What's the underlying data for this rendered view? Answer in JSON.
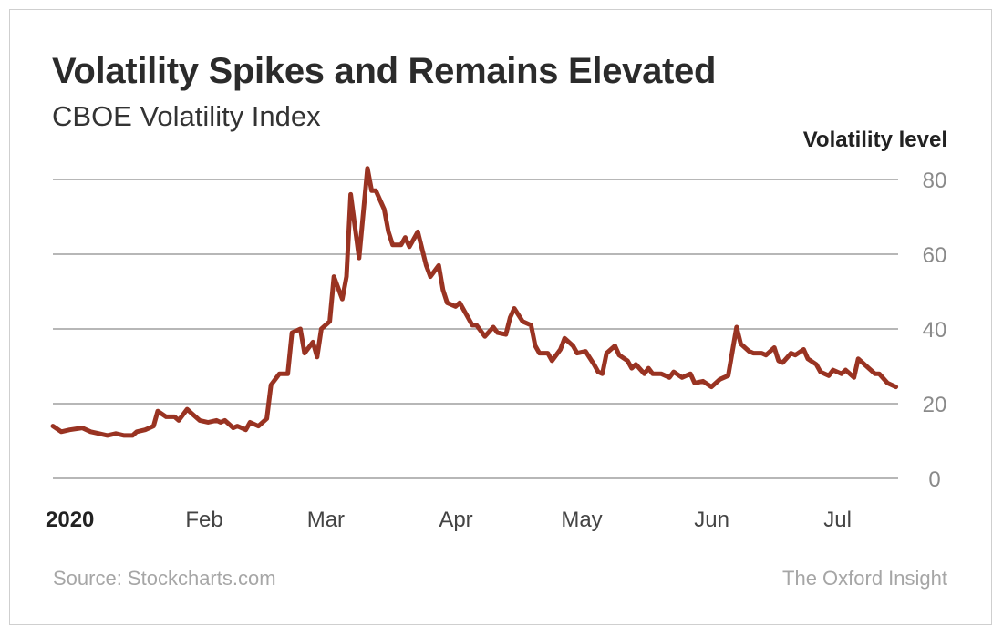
{
  "chart_data": {
    "type": "line",
    "title": "Volatility Spikes and Remains Elevated",
    "subtitle": "CBOE Volatility Index",
    "xlabel": "",
    "ylabel": "Volatility level",
    "ylim": [
      0,
      80
    ],
    "yticks": [
      "0",
      "20",
      "40",
      "60",
      "80"
    ],
    "xticks": [
      {
        "label": "2020",
        "date": "2020-01-01",
        "bold": true
      },
      {
        "label": "Feb",
        "date": "2020-02-01"
      },
      {
        "label": "Mar",
        "date": "2020-03-01"
      },
      {
        "label": "Apr",
        "date": "2020-04-01"
      },
      {
        "label": "May",
        "date": "2020-05-01"
      },
      {
        "label": "Jun",
        "date": "2020-06-01"
      },
      {
        "label": "Jul",
        "date": "2020-07-01"
      }
    ],
    "grid": true,
    "line_color": "#993322",
    "series": [
      {
        "points": [
          [
            "2020-01-02",
            14
          ],
          [
            "2020-01-04",
            12.5
          ],
          [
            "2020-01-06",
            13
          ],
          [
            "2020-01-09",
            13.5
          ],
          [
            "2020-01-11",
            12.5
          ],
          [
            "2020-01-13",
            12
          ],
          [
            "2020-01-15",
            11.5
          ],
          [
            "2020-01-17",
            12
          ],
          [
            "2020-01-19",
            11.5
          ],
          [
            "2020-01-21",
            11.5
          ],
          [
            "2020-01-22",
            12.5
          ],
          [
            "2020-01-24",
            13
          ],
          [
            "2020-01-26",
            14
          ],
          [
            "2020-01-27",
            18
          ],
          [
            "2020-01-29",
            16.5
          ],
          [
            "2020-01-31",
            16.5
          ],
          [
            "2020-02-01",
            15.5
          ],
          [
            "2020-02-03",
            18.5
          ],
          [
            "2020-02-04",
            17.5
          ],
          [
            "2020-02-06",
            15.5
          ],
          [
            "2020-02-08",
            15
          ],
          [
            "2020-02-10",
            15.5
          ],
          [
            "2020-02-11",
            15
          ],
          [
            "2020-02-12",
            15.5
          ],
          [
            "2020-02-14",
            13.5
          ],
          [
            "2020-02-15",
            14
          ],
          [
            "2020-02-17",
            13
          ],
          [
            "2020-02-18",
            15
          ],
          [
            "2020-02-20",
            14
          ],
          [
            "2020-02-22",
            16
          ],
          [
            "2020-02-23",
            25
          ],
          [
            "2020-02-25",
            28
          ],
          [
            "2020-02-27",
            28
          ],
          [
            "2020-02-28",
            39
          ],
          [
            "2020-03-01",
            40
          ],
          [
            "2020-03-02",
            33.5
          ],
          [
            "2020-03-04",
            36.5
          ],
          [
            "2020-03-05",
            32.5
          ],
          [
            "2020-03-06",
            40
          ],
          [
            "2020-03-08",
            42
          ],
          [
            "2020-03-09",
            54
          ],
          [
            "2020-03-11",
            48
          ],
          [
            "2020-03-12",
            54
          ],
          [
            "2020-03-13",
            76
          ],
          [
            "2020-03-15",
            59
          ],
          [
            "2020-03-17",
            83
          ],
          [
            "2020-03-18",
            77
          ],
          [
            "2020-03-19",
            77
          ],
          [
            "2020-03-21",
            72
          ],
          [
            "2020-03-22",
            66
          ],
          [
            "2020-03-23",
            62.5
          ],
          [
            "2020-03-25",
            62.5
          ],
          [
            "2020-03-26",
            64.5
          ],
          [
            "2020-03-27",
            62
          ],
          [
            "2020-03-29",
            66
          ],
          [
            "2020-03-31",
            57
          ],
          [
            "2020-04-01",
            54
          ],
          [
            "2020-04-03",
            57
          ],
          [
            "2020-04-04",
            50.5
          ],
          [
            "2020-04-05",
            47
          ],
          [
            "2020-04-07",
            46
          ],
          [
            "2020-04-08",
            47
          ],
          [
            "2020-04-10",
            43
          ],
          [
            "2020-04-11",
            41
          ],
          [
            "2020-04-12",
            41
          ],
          [
            "2020-04-14",
            38
          ],
          [
            "2020-04-16",
            40.5
          ],
          [
            "2020-04-17",
            39
          ],
          [
            "2020-04-19",
            38.5
          ],
          [
            "2020-04-20",
            43
          ],
          [
            "2020-04-21",
            45.5
          ],
          [
            "2020-04-23",
            42
          ],
          [
            "2020-04-25",
            41
          ],
          [
            "2020-04-26",
            35.5
          ],
          [
            "2020-04-27",
            33.5
          ],
          [
            "2020-04-29",
            33.5
          ],
          [
            "2020-04-30",
            31.5
          ],
          [
            "2020-05-02",
            34.5
          ],
          [
            "2020-05-03",
            37.5
          ],
          [
            "2020-05-05",
            35.5
          ],
          [
            "2020-05-06",
            33.5
          ],
          [
            "2020-05-08",
            34
          ],
          [
            "2020-05-10",
            30.5
          ],
          [
            "2020-05-11",
            28.5
          ],
          [
            "2020-05-12",
            28
          ],
          [
            "2020-05-13",
            33.5
          ],
          [
            "2020-05-15",
            35.5
          ],
          [
            "2020-05-16",
            33
          ],
          [
            "2020-05-18",
            31.5
          ],
          [
            "2020-05-19",
            29.5
          ],
          [
            "2020-05-20",
            30.5
          ],
          [
            "2020-05-22",
            28
          ],
          [
            "2020-05-23",
            29.5
          ],
          [
            "2020-05-24",
            28
          ],
          [
            "2020-05-26",
            28
          ],
          [
            "2020-05-28",
            27
          ],
          [
            "2020-05-29",
            28.5
          ],
          [
            "2020-05-31",
            27
          ],
          [
            "2020-06-02",
            28
          ],
          [
            "2020-06-03",
            25.5
          ],
          [
            "2020-06-05",
            26
          ],
          [
            "2020-06-07",
            24.5
          ],
          [
            "2020-06-09",
            26.5
          ],
          [
            "2020-06-10",
            27
          ],
          [
            "2020-06-11",
            27.5
          ],
          [
            "2020-06-13",
            40.5
          ],
          [
            "2020-06-14",
            36
          ],
          [
            "2020-06-16",
            34
          ],
          [
            "2020-06-17",
            33.5
          ],
          [
            "2020-06-19",
            33.5
          ],
          [
            "2020-06-20",
            33
          ],
          [
            "2020-06-22",
            35
          ],
          [
            "2020-06-23",
            31.5
          ],
          [
            "2020-06-24",
            31
          ],
          [
            "2020-06-26",
            33.5
          ],
          [
            "2020-06-27",
            33
          ],
          [
            "2020-06-29",
            34.5
          ],
          [
            "2020-06-30",
            32
          ],
          [
            "2020-07-02",
            30.5
          ],
          [
            "2020-07-03",
            28.5
          ],
          [
            "2020-07-05",
            27.5
          ],
          [
            "2020-07-06",
            29
          ],
          [
            "2020-07-08",
            28
          ],
          [
            "2020-07-09",
            29
          ],
          [
            "2020-07-11",
            27
          ],
          [
            "2020-07-12",
            32
          ],
          [
            "2020-07-14",
            30
          ],
          [
            "2020-07-16",
            28
          ],
          [
            "2020-07-17",
            28
          ],
          [
            "2020-07-19",
            25.5
          ],
          [
            "2020-07-21",
            24.5
          ]
        ]
      }
    ]
  },
  "footer": {
    "source": "Source: Stockcharts.com",
    "brand": "The Oxford Insight"
  }
}
